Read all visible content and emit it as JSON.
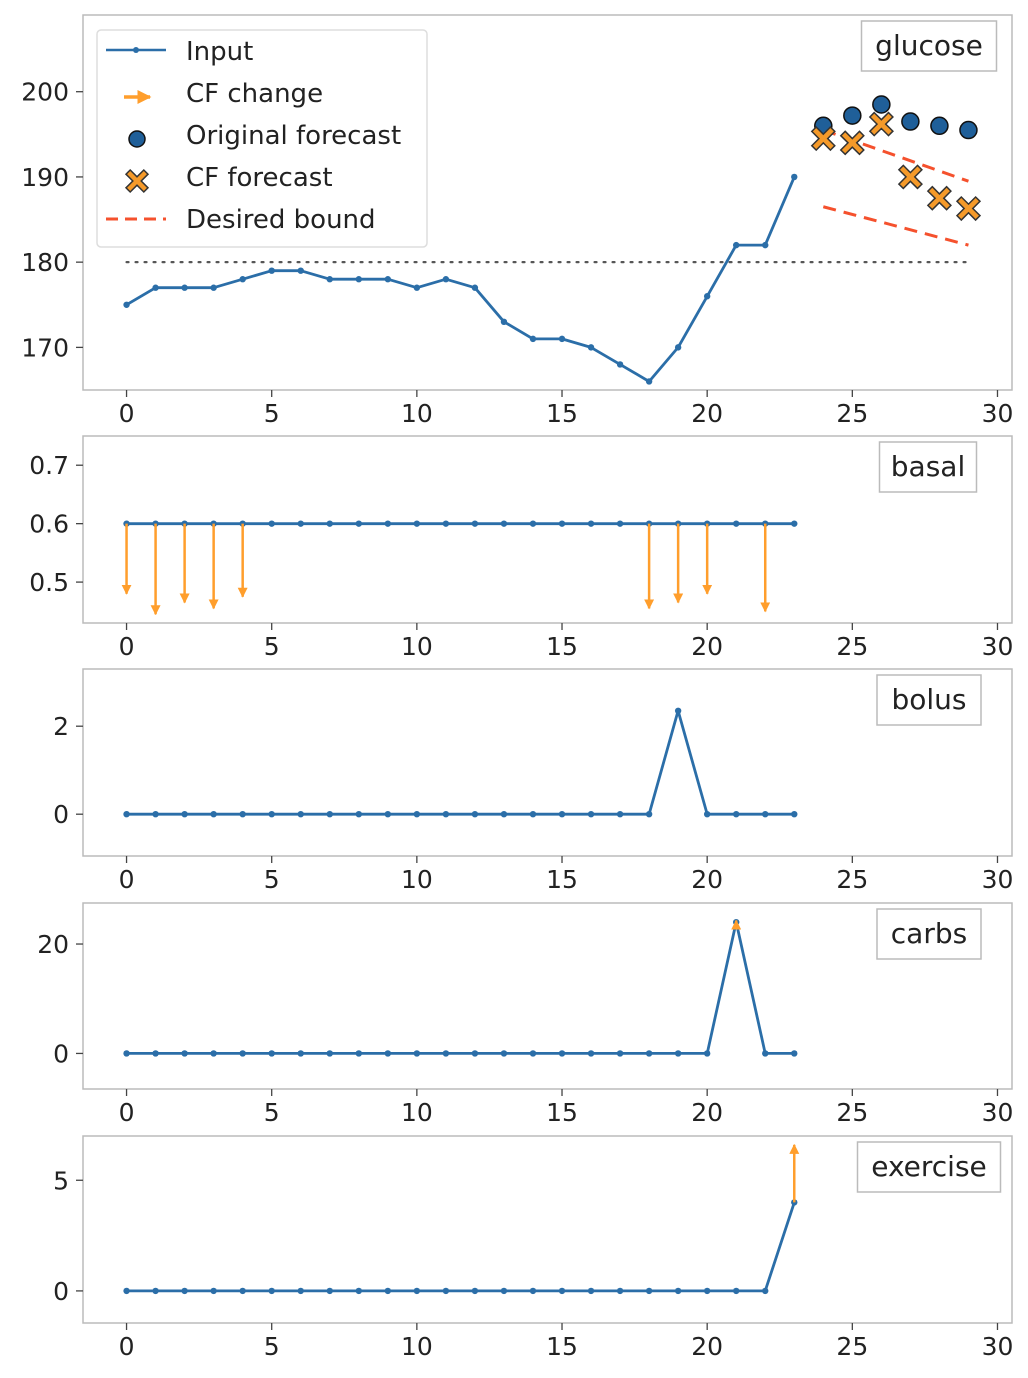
{
  "colors": {
    "input": "#2b6ea8",
    "cf_change": "#ff9e2c",
    "original_forecast": "#1f5f99",
    "cf_forecast": "#f59a2a",
    "desired_bound": "#f5512d",
    "threshold": "#555555"
  },
  "legend": {
    "input": "Input",
    "cf_change": "CF change",
    "original_forecast": "Original forecast",
    "cf_forecast": "CF forecast",
    "desired_bound": "Desired bound"
  },
  "chart_data": [
    {
      "type": "line",
      "name": "glucose",
      "x": [
        0,
        1,
        2,
        3,
        4,
        5,
        6,
        7,
        8,
        9,
        10,
        11,
        12,
        13,
        14,
        15,
        16,
        17,
        18,
        19,
        20,
        21,
        22,
        23
      ],
      "y": [
        175,
        177,
        177,
        177,
        178,
        179,
        179,
        178,
        178,
        178,
        177,
        178,
        177,
        173,
        171,
        171,
        170,
        168,
        166,
        170,
        176,
        182,
        182,
        190
      ],
      "xlim": [
        -1.5,
        30.5
      ],
      "ylim": [
        165,
        209
      ],
      "xticks": [
        0,
        5,
        10,
        15,
        20,
        25,
        30
      ],
      "yticks": [
        170,
        180,
        190,
        200
      ],
      "threshold": {
        "y": 180,
        "x": [
          0,
          29
        ]
      },
      "original_forecast": {
        "x": [
          24,
          25,
          26,
          27,
          28,
          29
        ],
        "y": [
          196,
          197.2,
          198.5,
          196.5,
          196,
          195.5
        ]
      },
      "cf_forecast": {
        "x": [
          24,
          25,
          26,
          27,
          28,
          29
        ],
        "y": [
          194.5,
          194,
          196.2,
          190,
          187.5,
          186.3
        ]
      },
      "desired_bound": {
        "upper": {
          "x": [
            24,
            29
          ],
          "y": [
            195.5,
            189.5
          ]
        },
        "lower": {
          "x": [
            24,
            29
          ],
          "y": [
            186.5,
            182
          ]
        }
      }
    },
    {
      "type": "line",
      "name": "basal",
      "x": [
        0,
        1,
        2,
        3,
        4,
        5,
        6,
        7,
        8,
        9,
        10,
        11,
        12,
        13,
        14,
        15,
        16,
        17,
        18,
        19,
        20,
        21,
        22,
        23
      ],
      "y": [
        0.6,
        0.6,
        0.6,
        0.6,
        0.6,
        0.6,
        0.6,
        0.6,
        0.6,
        0.6,
        0.6,
        0.6,
        0.6,
        0.6,
        0.6,
        0.6,
        0.6,
        0.6,
        0.6,
        0.6,
        0.6,
        0.6,
        0.6,
        0.6
      ],
      "xlim": [
        -1.5,
        30.5
      ],
      "ylim": [
        0.43,
        0.75
      ],
      "xticks": [
        0,
        5,
        10,
        15,
        20,
        25,
        30
      ],
      "yticks": [
        0.5,
        0.6,
        0.7
      ],
      "cf_changes": [
        {
          "x": 0,
          "from": 0.6,
          "to": 0.48
        },
        {
          "x": 1,
          "from": 0.6,
          "to": 0.445
        },
        {
          "x": 2,
          "from": 0.6,
          "to": 0.465
        },
        {
          "x": 3,
          "from": 0.6,
          "to": 0.455
        },
        {
          "x": 4,
          "from": 0.6,
          "to": 0.475
        },
        {
          "x": 18,
          "from": 0.6,
          "to": 0.455
        },
        {
          "x": 19,
          "from": 0.6,
          "to": 0.465
        },
        {
          "x": 20,
          "from": 0.6,
          "to": 0.48
        },
        {
          "x": 22,
          "from": 0.6,
          "to": 0.45
        }
      ]
    },
    {
      "type": "line",
      "name": "bolus",
      "x": [
        0,
        1,
        2,
        3,
        4,
        5,
        6,
        7,
        8,
        9,
        10,
        11,
        12,
        13,
        14,
        15,
        16,
        17,
        18,
        19,
        20,
        21,
        22,
        23
      ],
      "y": [
        0,
        0,
        0,
        0,
        0,
        0,
        0,
        0,
        0,
        0,
        0,
        0,
        0,
        0,
        0,
        0,
        0,
        0,
        0,
        2.35,
        0,
        0,
        0,
        0
      ],
      "xlim": [
        -1.5,
        30.5
      ],
      "ylim": [
        -0.95,
        3.3
      ],
      "xticks": [
        0,
        5,
        10,
        15,
        20,
        25,
        30
      ],
      "yticks": [
        0,
        2
      ],
      "cf_changes": []
    },
    {
      "type": "line",
      "name": "carbs",
      "x": [
        0,
        1,
        2,
        3,
        4,
        5,
        6,
        7,
        8,
        9,
        10,
        11,
        12,
        13,
        14,
        15,
        16,
        17,
        18,
        19,
        20,
        21,
        22,
        23
      ],
      "y": [
        0,
        0,
        0,
        0,
        0,
        0,
        0,
        0,
        0,
        0,
        0,
        0,
        0,
        0,
        0,
        0,
        0,
        0,
        0,
        0,
        0,
        24,
        0,
        0
      ],
      "xlim": [
        -1.5,
        30.5
      ],
      "ylim": [
        -6.5,
        27.5
      ],
      "xticks": [
        0,
        5,
        10,
        15,
        20,
        25,
        30
      ],
      "yticks": [
        0,
        20
      ],
      "cf_changes": [
        {
          "x": 21,
          "from": 24,
          "to": 24.3
        }
      ]
    },
    {
      "type": "line",
      "name": "exercise",
      "x": [
        0,
        1,
        2,
        3,
        4,
        5,
        6,
        7,
        8,
        9,
        10,
        11,
        12,
        13,
        14,
        15,
        16,
        17,
        18,
        19,
        20,
        21,
        22,
        23
      ],
      "y": [
        0,
        0,
        0,
        0,
        0,
        0,
        0,
        0,
        0,
        0,
        0,
        0,
        0,
        0,
        0,
        0,
        0,
        0,
        0,
        0,
        0,
        0,
        0,
        4
      ],
      "xlim": [
        -1.5,
        30.5
      ],
      "ylim": [
        -1.45,
        7.0
      ],
      "xticks": [
        0,
        5,
        10,
        15,
        20,
        25,
        30
      ],
      "yticks": [
        0,
        5
      ],
      "cf_changes": [
        {
          "x": 23,
          "from": 4,
          "to": 6.6
        }
      ]
    }
  ]
}
